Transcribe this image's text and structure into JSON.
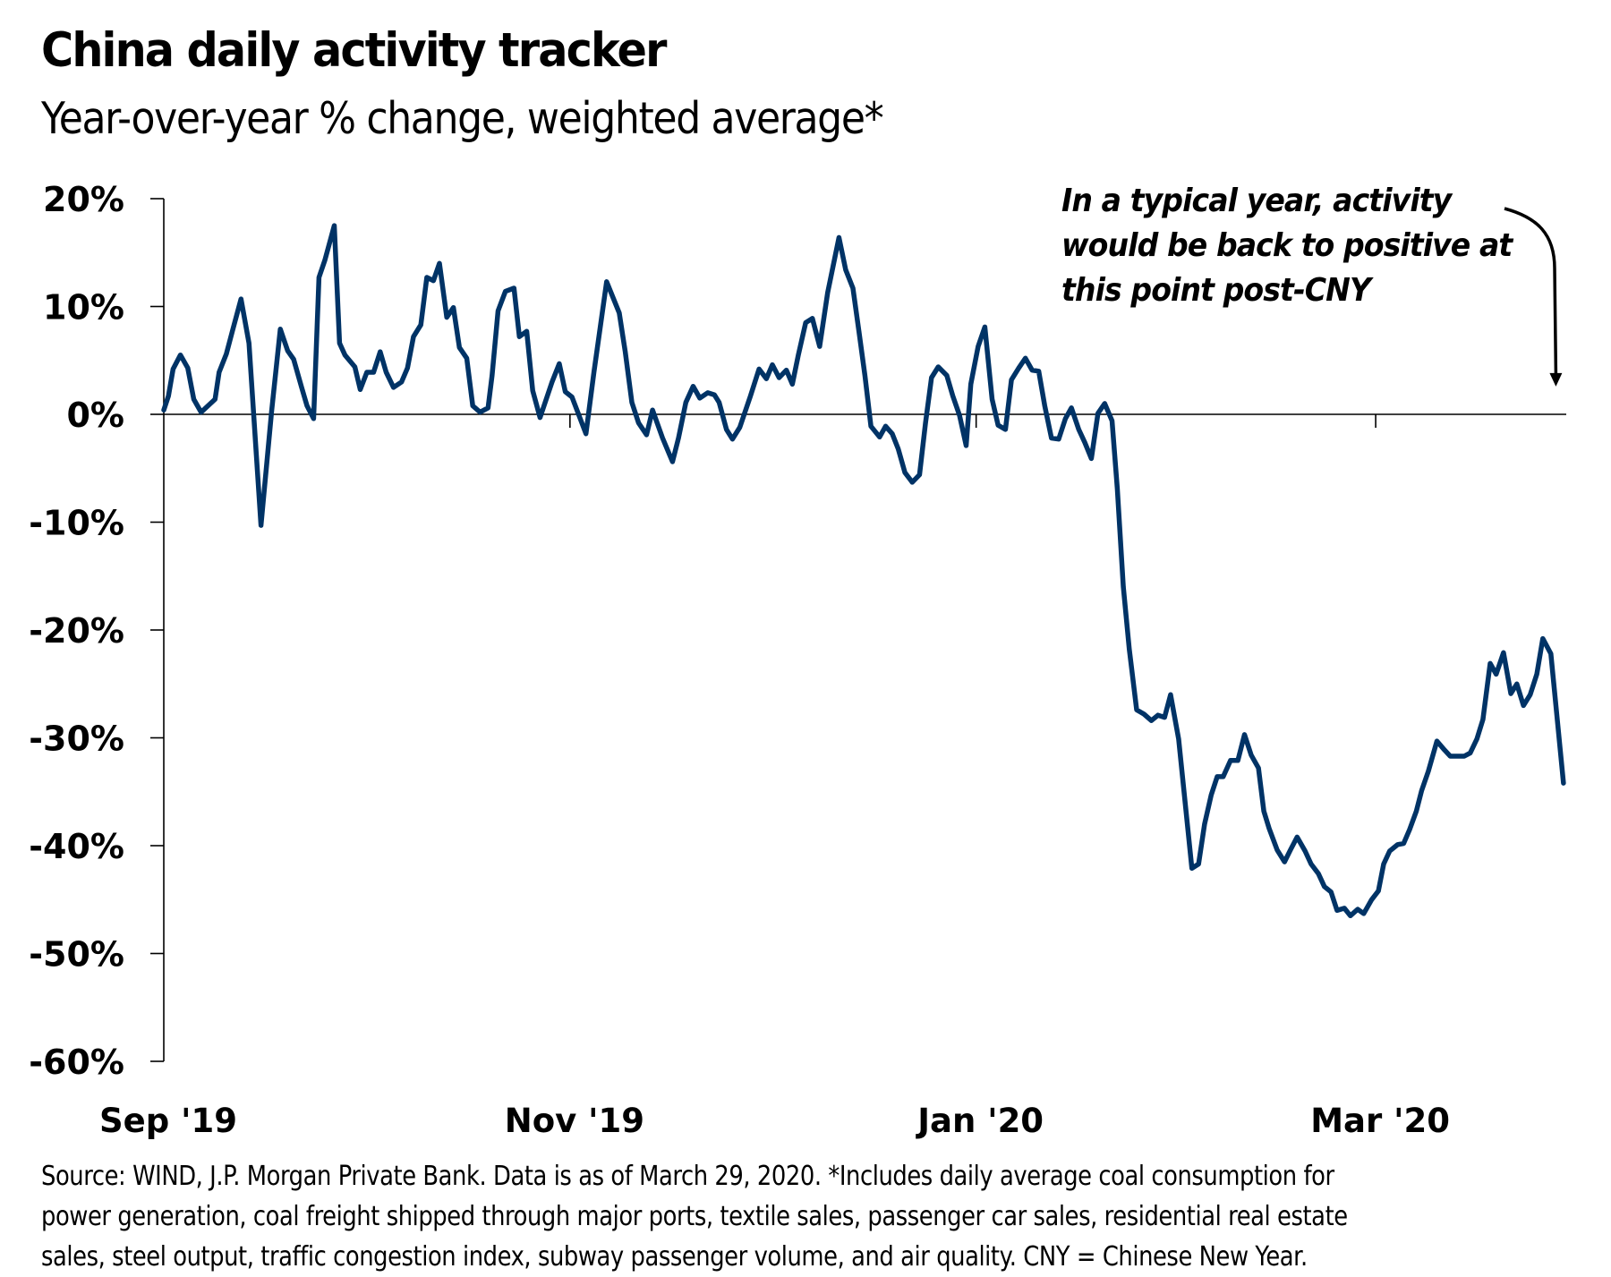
{
  "header": {
    "title": "China daily activity tracker",
    "subtitle": "Year-over-year % change, weighted average*"
  },
  "annotation": {
    "lines": [
      "In a typical year, activity",
      "would be back to positive at",
      "this point post-CNY"
    ]
  },
  "footnote": {
    "lines": [
      "Source: WIND, J.P. Morgan Private Bank. Data is as of March 29, 2020. *Includes daily average coal consumption for",
      "power generation, coal freight shipped through major ports, textile sales, passenger car sales, residential real estate",
      "sales, steel output, traffic congestion index, subway passenger volume, and air quality. CNY = Chinese New Year."
    ]
  },
  "colors": {
    "series": "#003366",
    "axis": "#000000"
  },
  "chart_data": {
    "type": "line",
    "title": "China daily activity tracker",
    "subtitle": "Year-over-year % change, weighted average*",
    "xlabel": "",
    "ylabel": "",
    "x_unit": "days since Sep 1, 2019",
    "x_range": [
      0,
      211
    ],
    "ylim": [
      -60,
      20
    ],
    "yticks": [
      20,
      10,
      0,
      -10,
      -20,
      -30,
      -40,
      -50,
      -60
    ],
    "ytick_labels": [
      "20%",
      "10%",
      "0%",
      "-10%",
      "-20%",
      "-30%",
      "-40%",
      "-50%",
      "-60%"
    ],
    "xticks": [
      0,
      61,
      122,
      182
    ],
    "xtick_labels": [
      "Sep '19",
      "Nov '19",
      "Jan '20",
      "Mar '20"
    ],
    "grid": false,
    "zero_line": true,
    "annotation_text": "In a typical year, activity would be back to positive at this point post-CNY",
    "annotation_arrow_target": [
      210,
      3
    ],
    "series": [
      {
        "name": "China daily activity tracker (YoY %)",
        "points": [
          [
            0.0,
            0.4
          ],
          [
            0.7,
            1.7
          ],
          [
            1.4,
            4.2
          ],
          [
            2.5,
            5.5
          ],
          [
            3.6,
            4.3
          ],
          [
            4.5,
            1.4
          ],
          [
            5.6,
            0.2
          ],
          [
            7.7,
            1.4
          ],
          [
            8.3,
            3.9
          ],
          [
            9.4,
            5.6
          ],
          [
            10.3,
            7.7
          ],
          [
            11.6,
            10.7
          ],
          [
            12.8,
            6.6
          ],
          [
            14.6,
            -10.3
          ],
          [
            16.2,
            0.3
          ],
          [
            17.5,
            7.9
          ],
          [
            18.6,
            5.9
          ],
          [
            19.5,
            5.1
          ],
          [
            20.7,
            2.5
          ],
          [
            21.5,
            0.8
          ],
          [
            22.5,
            -0.4
          ],
          [
            23.3,
            12.7
          ],
          [
            24.2,
            14.3
          ],
          [
            25.6,
            17.5
          ],
          [
            26.4,
            6.6
          ],
          [
            27.2,
            5.5
          ],
          [
            28.7,
            4.4
          ],
          [
            29.5,
            2.3
          ],
          [
            30.5,
            3.9
          ],
          [
            31.5,
            3.9
          ],
          [
            32.5,
            5.8
          ],
          [
            33.4,
            3.9
          ],
          [
            34.5,
            2.5
          ],
          [
            35.7,
            3.0
          ],
          [
            36.6,
            4.3
          ],
          [
            37.5,
            7.2
          ],
          [
            38.6,
            8.3
          ],
          [
            39.5,
            12.7
          ],
          [
            40.5,
            12.4
          ],
          [
            41.4,
            14.0
          ],
          [
            42.5,
            9.0
          ],
          [
            43.5,
            9.9
          ],
          [
            44.4,
            6.2
          ],
          [
            45.5,
            5.2
          ],
          [
            46.4,
            0.8
          ],
          [
            47.5,
            0.2
          ],
          [
            48.7,
            0.6
          ],
          [
            49.3,
            3.6
          ],
          [
            50.2,
            9.6
          ],
          [
            51.3,
            11.4
          ],
          [
            52.6,
            11.7
          ],
          [
            53.4,
            7.2
          ],
          [
            54.5,
            7.7
          ],
          [
            55.4,
            2.2
          ],
          [
            56.5,
            -0.3
          ],
          [
            58.3,
            3.0
          ],
          [
            59.4,
            4.7
          ],
          [
            60.3,
            2.1
          ],
          [
            61.3,
            1.6
          ],
          [
            63.4,
            -1.8
          ],
          [
            64.6,
            3.9
          ],
          [
            66.5,
            12.3
          ],
          [
            68.4,
            9.4
          ],
          [
            69.3,
            5.8
          ],
          [
            70.3,
            1.1
          ],
          [
            71.3,
            -0.8
          ],
          [
            72.5,
            -1.9
          ],
          [
            73.4,
            0.4
          ],
          [
            74.9,
            -2.2
          ],
          [
            76.4,
            -4.4
          ],
          [
            77.3,
            -2.2
          ],
          [
            78.4,
            1.1
          ],
          [
            79.5,
            2.6
          ],
          [
            80.5,
            1.5
          ],
          [
            81.7,
            2.0
          ],
          [
            82.7,
            1.8
          ],
          [
            83.4,
            1.1
          ],
          [
            84.5,
            -1.4
          ],
          [
            85.4,
            -2.3
          ],
          [
            86.5,
            -1.2
          ],
          [
            88.1,
            1.7
          ],
          [
            89.4,
            4.2
          ],
          [
            90.5,
            3.3
          ],
          [
            91.4,
            4.6
          ],
          [
            92.4,
            3.4
          ],
          [
            93.5,
            4.1
          ],
          [
            94.4,
            2.8
          ],
          [
            95.3,
            5.5
          ],
          [
            96.4,
            8.5
          ],
          [
            97.4,
            8.9
          ],
          [
            98.5,
            6.3
          ],
          [
            99.7,
            11.3
          ],
          [
            101.4,
            16.4
          ],
          [
            102.4,
            13.4
          ],
          [
            103.5,
            11.7
          ],
          [
            104.4,
            7.7
          ],
          [
            105.3,
            3.6
          ],
          [
            106.2,
            -1.1
          ],
          [
            107.5,
            -2.1
          ],
          [
            108.4,
            -1.1
          ],
          [
            109.4,
            -1.8
          ],
          [
            110.3,
            -3.2
          ],
          [
            111.3,
            -5.4
          ],
          [
            112.4,
            -6.3
          ],
          [
            113.5,
            -5.6
          ],
          [
            114.4,
            -0.8
          ],
          [
            115.3,
            3.4
          ],
          [
            116.3,
            4.4
          ],
          [
            117.6,
            3.6
          ],
          [
            118.5,
            1.7
          ],
          [
            119.5,
            -0.1
          ],
          [
            120.5,
            -2.9
          ],
          [
            121.2,
            2.8
          ],
          [
            122.3,
            6.3
          ],
          [
            123.3,
            8.1
          ],
          [
            124.4,
            1.4
          ],
          [
            125.3,
            -1.0
          ],
          [
            126.4,
            -1.4
          ],
          [
            127.3,
            3.2
          ],
          [
            128.4,
            4.3
          ],
          [
            129.4,
            5.2
          ],
          [
            130.4,
            4.1
          ],
          [
            131.4,
            4.0
          ],
          [
            132.3,
            0.8
          ],
          [
            133.3,
            -2.2
          ],
          [
            134.4,
            -2.3
          ],
          [
            135.4,
            -0.4
          ],
          [
            136.3,
            0.6
          ],
          [
            137.4,
            -1.4
          ],
          [
            138.3,
            -2.6
          ],
          [
            139.3,
            -4.1
          ],
          [
            140.3,
            0.1
          ],
          [
            141.3,
            1.0
          ],
          [
            142.4,
            -0.6
          ],
          [
            143.2,
            -6.9
          ],
          [
            144.1,
            -16.0
          ],
          [
            145.0,
            -21.8
          ],
          [
            146.1,
            -27.4
          ],
          [
            147.2,
            -27.8
          ],
          [
            148.3,
            -28.4
          ],
          [
            149.3,
            -27.9
          ],
          [
            150.3,
            -28.1
          ],
          [
            151.2,
            -26.0
          ],
          [
            152.4,
            -30.1
          ],
          [
            153.4,
            -36.1
          ],
          [
            154.4,
            -42.1
          ],
          [
            155.4,
            -41.7
          ],
          [
            156.3,
            -38.0
          ],
          [
            157.3,
            -35.3
          ],
          [
            158.2,
            -33.6
          ],
          [
            159.1,
            -33.6
          ],
          [
            160.2,
            -32.1
          ],
          [
            161.3,
            -32.1
          ],
          [
            162.3,
            -29.7
          ],
          [
            163.3,
            -31.6
          ],
          [
            164.4,
            -32.8
          ],
          [
            165.2,
            -36.8
          ],
          [
            166.0,
            -38.4
          ],
          [
            167.2,
            -40.4
          ],
          [
            168.3,
            -41.5
          ],
          [
            169.2,
            -40.4
          ],
          [
            170.2,
            -39.2
          ],
          [
            171.4,
            -40.5
          ],
          [
            172.3,
            -41.7
          ],
          [
            173.4,
            -42.6
          ],
          [
            174.3,
            -43.8
          ],
          [
            175.3,
            -44.3
          ],
          [
            176.2,
            -46.0
          ],
          [
            177.3,
            -45.8
          ],
          [
            178.2,
            -46.5
          ],
          [
            179.3,
            -45.9
          ],
          [
            180.2,
            -46.3
          ],
          [
            181.4,
            -45.0
          ],
          [
            182.4,
            -44.2
          ],
          [
            183.2,
            -41.7
          ],
          [
            184.1,
            -40.5
          ],
          [
            185.3,
            -39.9
          ],
          [
            186.2,
            -39.8
          ],
          [
            187.1,
            -38.5
          ],
          [
            188.1,
            -36.8
          ],
          [
            188.9,
            -34.9
          ],
          [
            189.9,
            -33.1
          ],
          [
            191.2,
            -30.3
          ],
          [
            192.3,
            -31.1
          ],
          [
            193.2,
            -31.7
          ],
          [
            194.2,
            -31.7
          ],
          [
            195.3,
            -31.7
          ],
          [
            196.2,
            -31.4
          ],
          [
            197.2,
            -30.1
          ],
          [
            198.1,
            -28.3
          ],
          [
            199.2,
            -23.1
          ],
          [
            200.1,
            -24.1
          ],
          [
            201.2,
            -22.1
          ],
          [
            202.3,
            -25.9
          ],
          [
            203.2,
            -25.0
          ],
          [
            204.2,
            -27.0
          ],
          [
            205.2,
            -26.0
          ],
          [
            206.2,
            -24.1
          ],
          [
            207.1,
            -20.8
          ],
          [
            208.3,
            -22.2
          ],
          [
            209.3,
            -28.5
          ],
          [
            210.2,
            -34.2
          ]
        ]
      }
    ]
  }
}
